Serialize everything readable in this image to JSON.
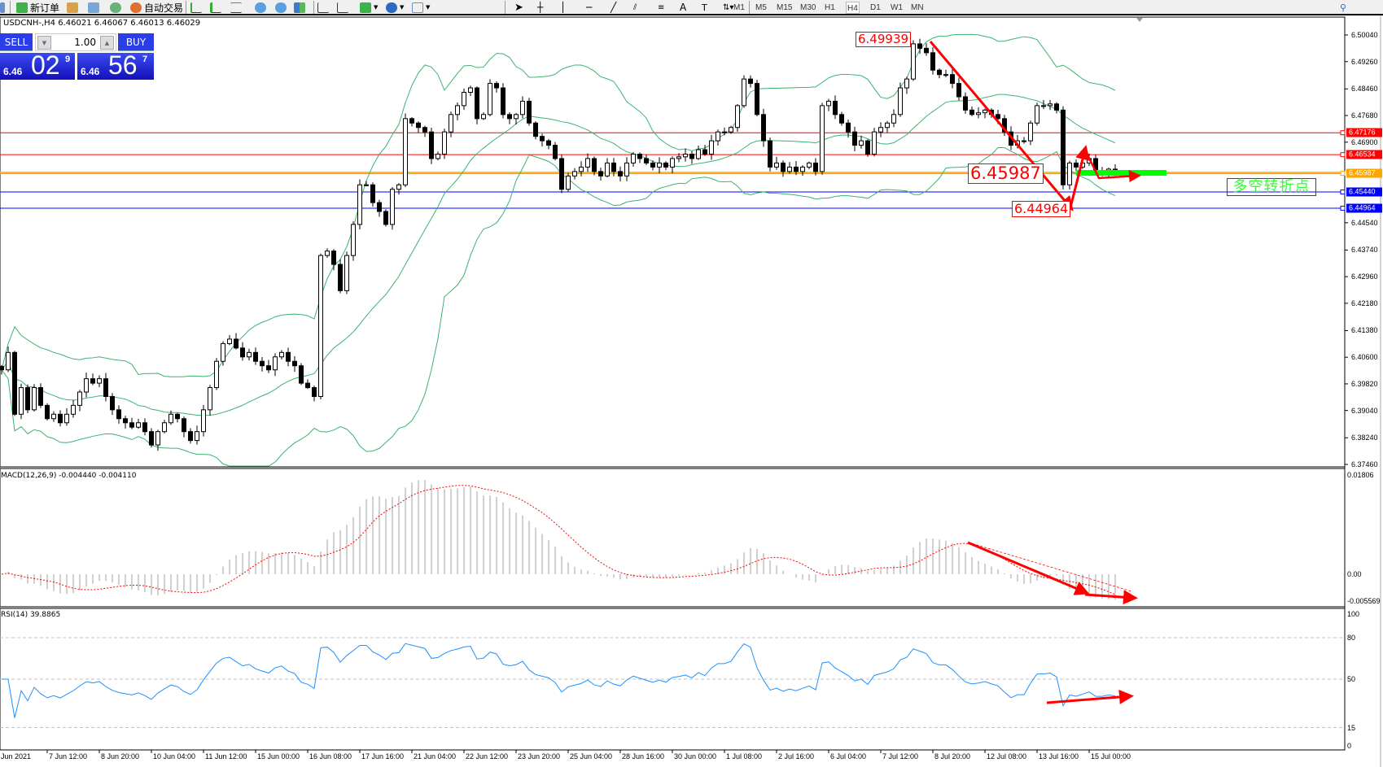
{
  "toolbar": {
    "new_order": "新订单",
    "auto_trade": "自动交易",
    "timeframes": [
      "M1",
      "M5",
      "M15",
      "M30",
      "H1",
      "H4",
      "D1",
      "W1",
      "MN"
    ],
    "active_timeframe": "H4",
    "icons": [
      "search-icon",
      "new-order-icon",
      "expert-icon",
      "market-watch-icon",
      "signals-icon",
      "auto-trade-icon",
      "bar-chart-icon",
      "candlestick-icon",
      "line-chart-icon",
      "zoom-in-icon",
      "zoom-out-icon",
      "tile-windows-icon",
      "chart-shift-icon",
      "autoscroll-icon",
      "add-indicator-icon",
      "periods-icon",
      "templates-icon",
      "cursor-icon",
      "crosshair-icon",
      "vertical-line-icon",
      "horizontal-line-icon",
      "trendline-icon",
      "equidistant-channel-icon",
      "fibonacci-icon",
      "text-icon",
      "text-label-icon",
      "arrows-icon"
    ]
  },
  "chart_header": "USDCNH-,H4  6.46021 6.46067 6.46013 6.46029",
  "trade_panel": {
    "sell_label": "SELL",
    "buy_label": "BUY",
    "lot": "1.00",
    "sell_prefix": "6.46",
    "sell_big": "02",
    "sell_sup": "9",
    "buy_prefix": "6.46",
    "buy_big": "56",
    "buy_sup": "7"
  },
  "colors": {
    "bands": "#3cb371",
    "macd_hist": "#c0c0c0",
    "macd_signal": "#ff0000",
    "rsi": "#1e90ff",
    "resistance": "#ff0000",
    "pivot": "#ffa500",
    "support": "#0000ff",
    "annotation": "#ff0000",
    "pivot_zone": "#00ff00"
  },
  "annotations": {
    "high_label": "6.49939",
    "pivot_label": "6.45987",
    "low_label": "6.44964",
    "pivot_text": "多空转折点"
  },
  "chart_data": [
    {
      "type": "candlestick",
      "symbol": "USDCNH-",
      "timeframe": "H4",
      "indicators": [
        "Bollinger Bands(20,2)"
      ],
      "ylim": [
        6.3746,
        6.5004
      ],
      "y_ticks": [
        "6.50040",
        "6.49260",
        "6.48460",
        "6.47680",
        "6.46900",
        "6.44540",
        "6.43740",
        "6.42960",
        "6.42180",
        "6.41380",
        "6.40600",
        "6.39820",
        "6.39040",
        "6.38240",
        "6.37460"
      ],
      "x_ticks": [
        "Jun 2021",
        "7 Jun 12:00",
        "8 Jun 20:00",
        "10 Jun 04:00",
        "11 Jun 12:00",
        "15 Jun 00:00",
        "16 Jun 08:00",
        "17 Jun 16:00",
        "21 Jun 04:00",
        "22 Jun 12:00",
        "23 Jun 20:00",
        "25 Jun 04:00",
        "28 Jun 16:00",
        "30 Jun 00:00",
        "1 Jul 08:00",
        "2 Jul 16:00",
        "6 Jul 04:00",
        "7 Jul 12:00",
        "8 Jul 20:00",
        "12 Jul 08:00",
        "13 Jul 16:00",
        "15 Jul 00:00"
      ],
      "levels": [
        {
          "price": "6.47176",
          "color": "#ff0000"
        },
        {
          "price": "6.46534",
          "color": "#ff0000"
        },
        {
          "price": "6.45987",
          "color": "#ffa500"
        },
        {
          "price": "6.45440",
          "color": "#0000ff"
        },
        {
          "price": "6.44964",
          "color": "#0000ff"
        }
      ],
      "close": [
        6.4023,
        6.4074,
        6.3893,
        6.3971,
        6.3906,
        6.3971,
        6.3919,
        6.388,
        6.3893,
        6.3868,
        6.3893,
        6.3919,
        6.3958,
        6.3997,
        6.3984,
        6.3997,
        6.3945,
        6.3906,
        6.388,
        6.3868,
        6.3855,
        6.3868,
        6.3842,
        6.3803,
        6.3842,
        6.3868,
        6.3893,
        6.388,
        6.3842,
        6.3816,
        6.3842,
        6.3906,
        6.3971,
        6.4048,
        6.41,
        6.4113,
        6.4087,
        6.4061,
        6.4074,
        6.4048,
        6.4035,
        6.4023,
        6.4061,
        6.4074,
        6.4048,
        6.4035,
        6.3984,
        6.3971,
        6.3945,
        6.4358,
        6.4371,
        6.4332,
        6.4255,
        6.4358,
        6.4449,
        6.4565,
        6.4565,
        6.4513,
        6.4487,
        6.4449,
        6.4552,
        6.4565,
        6.4759,
        6.4746,
        6.4733,
        6.472,
        6.4642,
        6.4655,
        6.472,
        6.4771,
        6.4797,
        6.4836,
        6.4849,
        6.4759,
        6.4771,
        6.4862,
        6.4849,
        6.4771,
        6.4759,
        6.4771,
        6.481,
        6.4746,
        6.4707,
        6.4694,
        6.4681,
        6.4642,
        6.4552,
        6.4591,
        6.4604,
        6.4617,
        6.4642,
        6.4604,
        6.4591,
        6.4629,
        6.4604,
        6.4591,
        6.4629,
        6.4655,
        6.4642,
        6.4629,
        6.4617,
        6.4629,
        6.4617,
        6.4642,
        6.4647,
        6.4655,
        6.4642,
        6.4668,
        6.4655,
        6.4694,
        6.472,
        6.472,
        6.4733,
        6.4797,
        6.4875,
        6.4862,
        6.4771,
        6.4694,
        6.4617,
        6.4629,
        6.4604,
        6.4617,
        6.4604,
        6.4617,
        6.4629,
        6.4604,
        6.4797,
        6.481,
        6.4771,
        6.4746,
        6.472,
        6.4681,
        6.4694,
        6.4655,
        6.472,
        6.4733,
        6.4746,
        6.4771,
        6.4849,
        6.4875,
        6.4978,
        6.4965,
        6.4952,
        6.4901,
        6.4888,
        6.4888,
        6.4862,
        6.4823,
        6.4784,
        6.4771,
        6.4776,
        6.4784,
        6.4771,
        6.4759,
        6.472,
        6.4681,
        6.4694,
        6.4694,
        6.4746,
        6.4797,
        6.4797,
        6.4802,
        6.4784,
        6.4565,
        6.4629,
        6.4617,
        6.4629,
        6.4642,
        6.4604,
        6.4604,
        6.4611,
        6.46029
      ]
    },
    {
      "type": "bar+line",
      "title": "MACD(12,26,9) -0.004440 -0.004110",
      "y_ticks": [
        "0.01806",
        "0.00",
        "-0.005569"
      ],
      "ylim": [
        -0.005569,
        0.01806
      ]
    },
    {
      "type": "line",
      "title": "RSI(14) 39.8865",
      "y_ticks": [
        "100",
        "80",
        "50",
        "15",
        "0"
      ],
      "levels": [
        80,
        50,
        15
      ],
      "ylim": [
        0,
        100
      ]
    }
  ]
}
